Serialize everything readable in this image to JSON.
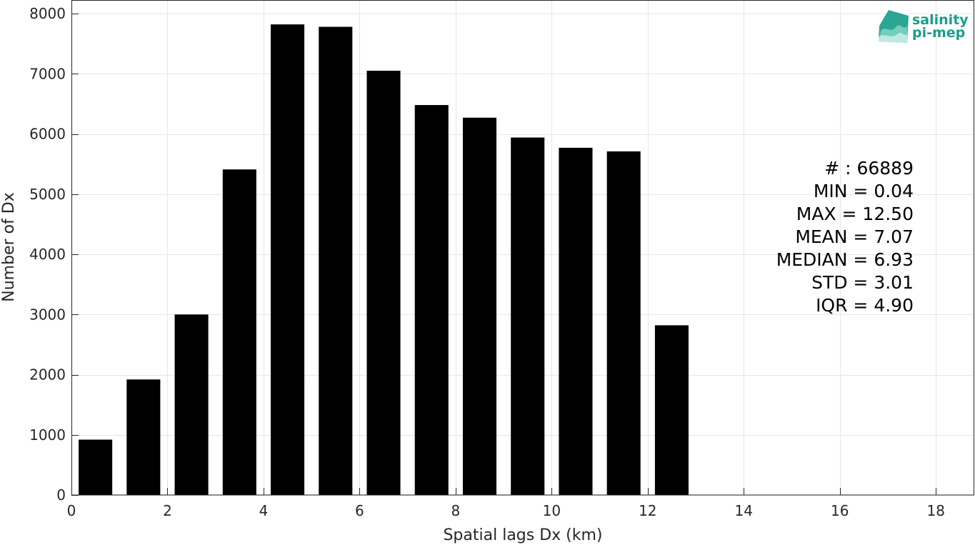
{
  "chart_data": {
    "type": "bar",
    "title": "",
    "xlabel": "Spatial lags Dx (km)",
    "ylabel": "Number of Dx",
    "xlim": [
      0,
      18.8
    ],
    "ylim": [
      0,
      8000
    ],
    "xticks": [
      0,
      2,
      4,
      6,
      8,
      10,
      12,
      14,
      16,
      18
    ],
    "yticks": [
      0,
      1000,
      2000,
      3000,
      4000,
      5000,
      6000,
      7000,
      8000
    ],
    "bin_width": 1,
    "bin_centers": [
      0.5,
      1.5,
      2.5,
      3.5,
      4.5,
      5.5,
      6.5,
      7.5,
      8.5,
      9.5,
      10.5,
      11.5,
      12.5
    ],
    "values": [
      920,
      1920,
      3000,
      5410,
      7820,
      7780,
      7050,
      6480,
      6270,
      5940,
      5770,
      5710,
      2820
    ],
    "bar_color": "#000000",
    "grid": true,
    "stats": [
      "# : 66889",
      "MIN = 0.04",
      "MAX =  12.50",
      "MEAN = 7.07",
      "MEDIAN = 6.93",
      "STD = 3.01",
      "IQR = 4.90"
    ]
  },
  "logo": {
    "line1": "salinity",
    "line2": "pi-mep",
    "color": "#1a9e8a"
  }
}
